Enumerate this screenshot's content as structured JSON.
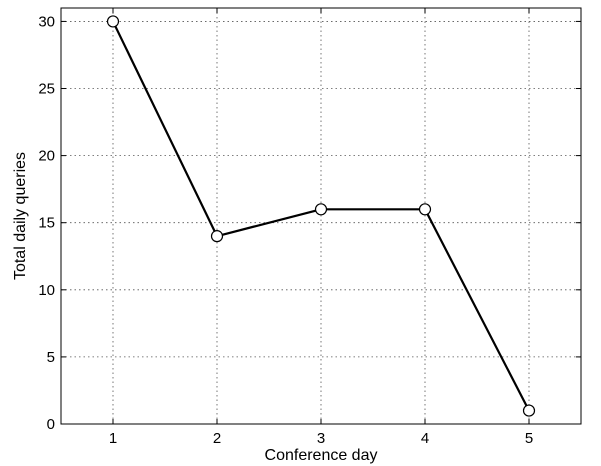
{
  "chart_data": {
    "type": "line",
    "title": "",
    "xlabel": "Conference day",
    "ylabel": "Total daily queries",
    "x": [
      1,
      2,
      3,
      4,
      5
    ],
    "series": [
      {
        "values": [
          30,
          14,
          16,
          16,
          1
        ],
        "color": "#000000",
        "marker": "circle-open"
      }
    ],
    "xlim": [
      0.5,
      5.5
    ],
    "ylim": [
      0,
      31
    ],
    "xticks": [
      "1",
      "2",
      "3",
      "4",
      "5"
    ],
    "yticks": [
      "0",
      "5",
      "10",
      "15",
      "20",
      "25",
      "30"
    ],
    "grid": true,
    "grid_style": "dotted",
    "legend": "none"
  }
}
